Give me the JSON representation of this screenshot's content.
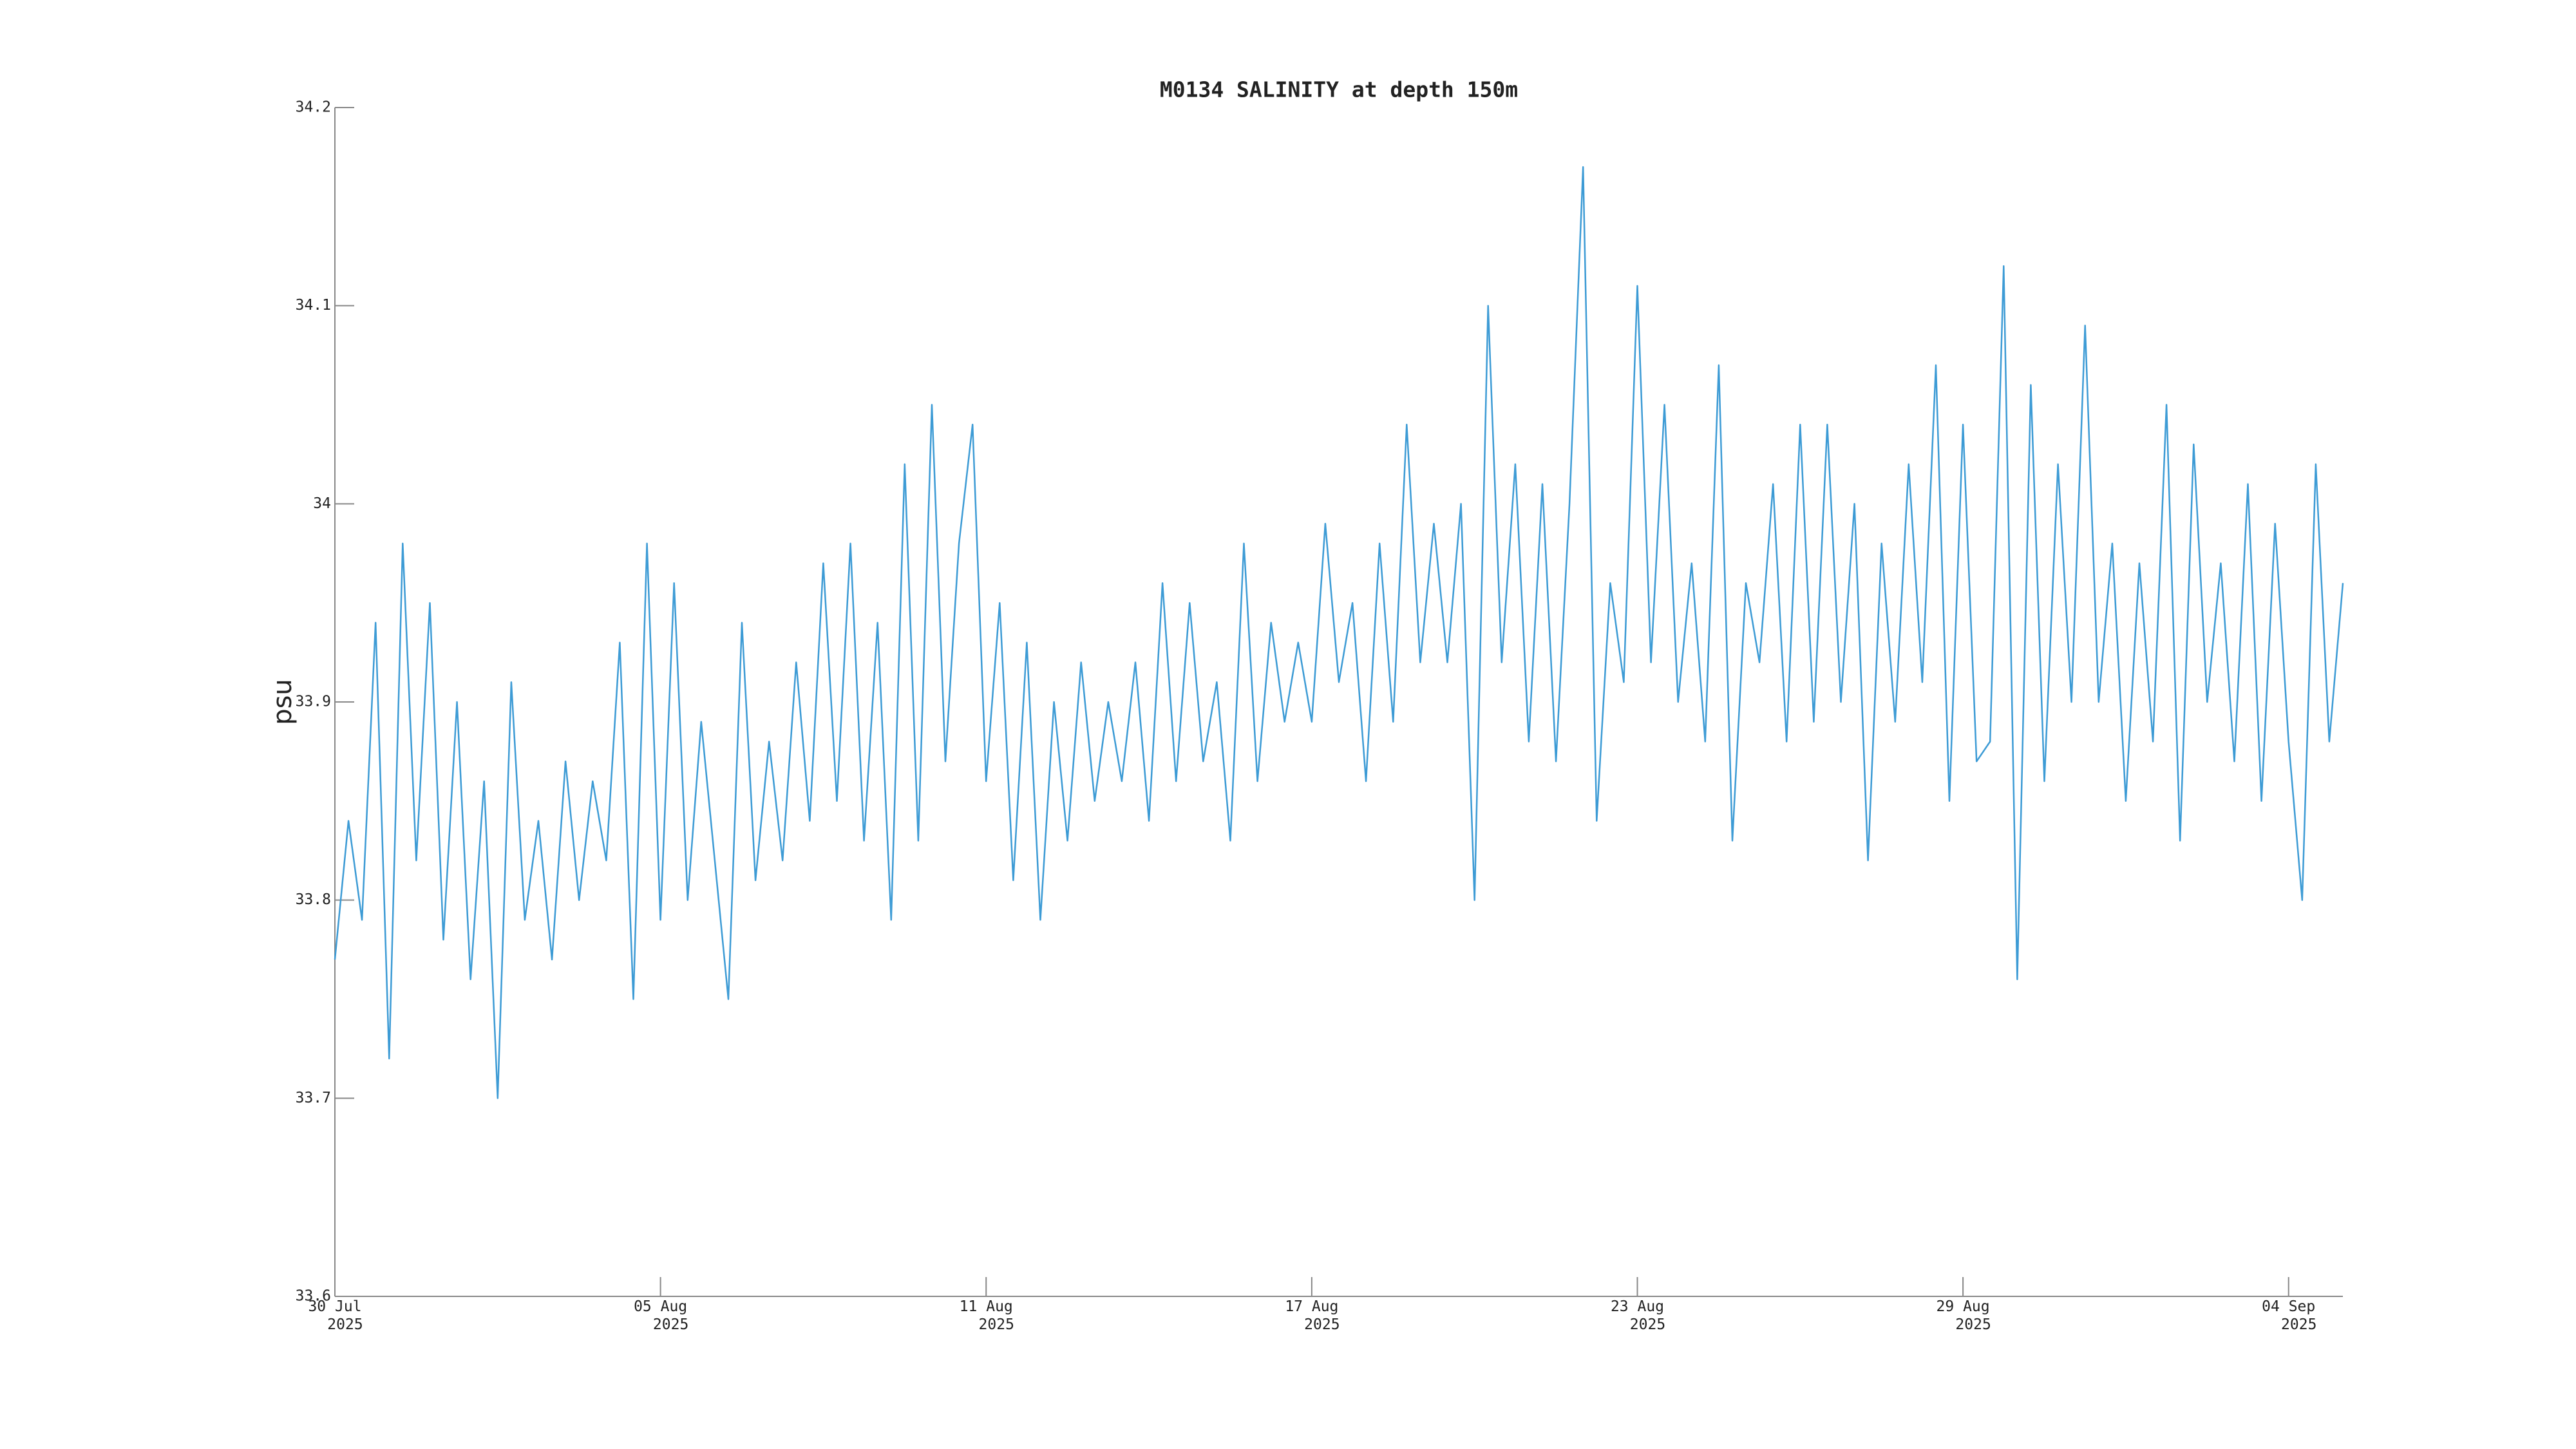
{
  "chart_data": {
    "type": "line",
    "title": "M0134 SALINITY at depth 150m",
    "ylabel": "psu",
    "color": "#3d9bd5",
    "x": [
      0,
      0.25,
      0.5,
      0.75,
      1,
      1.25,
      1.5,
      1.75,
      2,
      2.25,
      2.5,
      2.75,
      3,
      3.25,
      3.5,
      3.75,
      4,
      4.25,
      4.5,
      4.75,
      5,
      5.25,
      5.5,
      5.75,
      6,
      6.25,
      6.5,
      6.75,
      7,
      7.25,
      7.5,
      7.75,
      8,
      8.25,
      8.5,
      8.75,
      9,
      9.25,
      9.5,
      9.75,
      10,
      10.25,
      10.5,
      10.75,
      11,
      11.25,
      11.5,
      11.75,
      12,
      12.25,
      12.5,
      12.75,
      13,
      13.25,
      13.5,
      13.75,
      14,
      14.25,
      14.5,
      14.75,
      15,
      15.25,
      15.5,
      15.75,
      16,
      16.25,
      16.5,
      16.75,
      17,
      17.25,
      17.5,
      17.75,
      18,
      18.25,
      18.5,
      18.75,
      19,
      19.25,
      19.5,
      19.75,
      20,
      20.25,
      20.5,
      20.75,
      21,
      21.25,
      21.5,
      21.75,
      22,
      22.25,
      22.5,
      22.75,
      23,
      23.25,
      23.5,
      23.75,
      24,
      24.25,
      24.5,
      24.75,
      25,
      25.25,
      25.5,
      25.75,
      26,
      26.25,
      26.5,
      26.75,
      27,
      27.25,
      27.5,
      27.75,
      28,
      28.25,
      28.5,
      28.75,
      29,
      29.25,
      29.5,
      29.75,
      30,
      30.25,
      30.5,
      30.75,
      31,
      31.25,
      31.5,
      31.75,
      32,
      32.25,
      32.5,
      32.75,
      33,
      33.25,
      33.5,
      33.75,
      34,
      34.25,
      34.5,
      34.75,
      35,
      35.25,
      35.5,
      35.75,
      36,
      36.25,
      36.5,
      36.75,
      37
    ],
    "values": [
      33.77,
      33.84,
      33.79,
      33.94,
      33.72,
      33.98,
      33.82,
      33.95,
      33.78,
      33.9,
      33.76,
      33.86,
      33.7,
      33.91,
      33.79,
      33.84,
      33.77,
      33.87,
      33.8,
      33.86,
      33.82,
      33.93,
      33.75,
      33.98,
      33.79,
      33.96,
      33.8,
      33.89,
      33.82,
      33.75,
      33.94,
      33.81,
      33.88,
      33.82,
      33.92,
      33.84,
      33.97,
      33.85,
      33.98,
      33.83,
      33.94,
      33.79,
      34.02,
      33.83,
      34.05,
      33.87,
      33.98,
      34.04,
      33.86,
      33.95,
      33.81,
      33.93,
      33.79,
      33.9,
      33.83,
      33.92,
      33.85,
      33.9,
      33.86,
      33.92,
      33.84,
      33.96,
      33.86,
      33.95,
      33.87,
      33.91,
      33.83,
      33.98,
      33.86,
      33.94,
      33.89,
      33.93,
      33.89,
      33.99,
      33.91,
      33.95,
      33.86,
      33.98,
      33.89,
      34.04,
      33.92,
      33.99,
      33.92,
      34.0,
      33.8,
      34.1,
      33.92,
      34.02,
      33.88,
      34.01,
      33.87,
      34.0,
      34.17,
      33.84,
      33.96,
      33.91,
      34.11,
      33.92,
      34.05,
      33.9,
      33.97,
      33.88,
      34.07,
      33.83,
      33.96,
      33.92,
      34.01,
      33.88,
      34.04,
      33.89,
      34.04,
      33.9,
      34.0,
      33.82,
      33.98,
      33.89,
      34.02,
      33.91,
      34.07,
      33.85,
      34.04,
      33.87,
      33.88,
      34.12,
      33.76,
      34.06,
      33.86,
      34.02,
      33.9,
      34.09,
      33.9,
      33.98,
      33.85,
      33.97,
      33.88,
      34.05,
      33.83,
      34.03,
      33.9,
      33.97,
      33.87,
      34.01,
      33.85,
      33.99,
      33.88,
      33.8,
      34.02,
      33.88,
      33.96
    ],
    "xlim": [
      0,
      37
    ],
    "xticks": [
      {
        "value": 0,
        "label": "30 Jul 2025"
      },
      {
        "value": 6,
        "label": "05 Aug 2025"
      },
      {
        "value": 12,
        "label": "11 Aug 2025"
      },
      {
        "value": 18,
        "label": "17 Aug 2025"
      },
      {
        "value": 24,
        "label": "23 Aug 2025"
      },
      {
        "value": 30,
        "label": "29 Aug 2025"
      },
      {
        "value": 36,
        "label": "04 Sep 2025"
      }
    ],
    "ylim": [
      33.6,
      34.2
    ],
    "yticks": [
      33.6,
      33.7,
      33.8,
      33.9,
      34,
      34.1,
      34.2
    ]
  }
}
